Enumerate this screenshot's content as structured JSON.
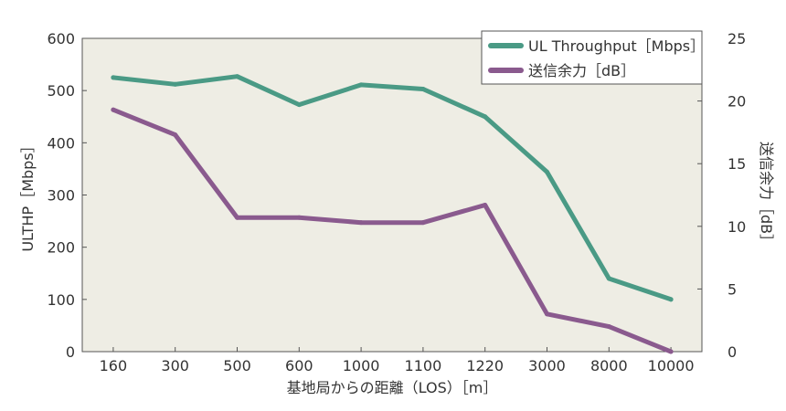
{
  "chart_data": {
    "type": "line",
    "categories": [
      "160",
      "300",
      "500",
      "600",
      "1000",
      "1100",
      "1220",
      "3000",
      "8000",
      "10000"
    ],
    "xlabel": "基地局からの距離（LOS）［m］",
    "ylabel_left": "ULTHP［Mbps］",
    "ylabel_right": "送信余力［dB］",
    "ylim_left": [
      0,
      600
    ],
    "ylim_right": [
      0,
      25
    ],
    "yticks_left": [
      "0",
      "100",
      "200",
      "300",
      "400",
      "500",
      "600"
    ],
    "yticks_right": [
      "0",
      "5",
      "10",
      "15",
      "20",
      "25"
    ],
    "legend_position": "top-right",
    "grid": false,
    "series": [
      {
        "name": "UL Throughput［Mbps］",
        "axis": "left",
        "color": "#4a9a85",
        "values": [
          525,
          512,
          527,
          473,
          511,
          503,
          450,
          344,
          140,
          100
        ]
      },
      {
        "name": "送信余力［dB］",
        "axis": "right",
        "color": "#8a5a8e",
        "values": [
          19.3,
          17.3,
          10.7,
          10.7,
          10.3,
          10.3,
          11.7,
          3.0,
          2.0,
          0.0
        ]
      }
    ],
    "colors": {
      "plot_background": "#eeede4",
      "axis": "#555555"
    }
  }
}
